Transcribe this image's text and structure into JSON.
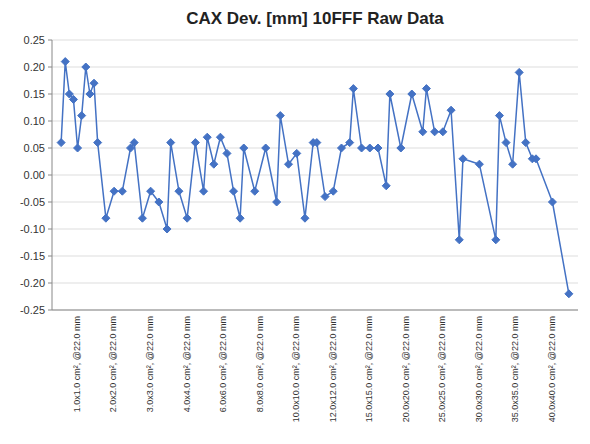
{
  "chart_data": {
    "type": "line",
    "title": "CAX Dev. [mm] 10FFF Raw Data",
    "color": "#4472C4",
    "marker": "diamond",
    "line_style": "solid",
    "grid": true,
    "ylim": [
      -0.25,
      0.25
    ],
    "yticks": [
      -0.25,
      {
        "value": -0.2,
        "label": "-0.20"
      },
      -0.15,
      {
        "value": -0.1,
        "label": "-0.10"
      },
      -0.05,
      {
        "value": 0,
        "label": "0.00"
      },
      0.05,
      {
        "value": 0.1,
        "label": "0.10"
      },
      0.15,
      {
        "value": 0.2,
        "label": "0.20"
      },
      0.25
    ],
    "categories": [
      "1.0x1.0 cm², @22.0 mm",
      "2.0x2.0 cm², @22.0 mm",
      "3.0x3.0 cm², @22.0 mm",
      "4.0x4.0 cm², @22.0 mm",
      "6.0x6.0 cm², @22.0 mm",
      "8.0x8.0 cm², @22.0 mm",
      "10.0x10.0 cm², @22.0 mm",
      "12.0x12.0 cm², @22.0 mm",
      "15.0x15.0 cm², @22.0 mm",
      "20.0x20.0 cm², @22.0 mm",
      "25.0x25.0 cm², @22.0 mm",
      "30.0x30.0 cm², @22.0 mm",
      "35.0x35.0 cm², @22.0 mm",
      "40.0x40.0 cm², @22.0 mm"
    ],
    "values": [
      [
        0.06,
        0.21,
        0.15,
        0.14,
        0.05,
        0.11,
        0.2,
        0.15,
        0.17
      ],
      [
        0.06,
        -0.08,
        -0.03,
        -0.03,
        0.05
      ],
      [
        0.06,
        -0.08,
        -0.03,
        -0.05,
        -0.1
      ],
      [
        0.06,
        -0.03,
        -0.08,
        0.06,
        -0.03
      ],
      [
        0.07,
        0.02,
        0.07,
        0.04,
        -0.03,
        -0.08
      ],
      [
        0.05,
        -0.03,
        0.05,
        -0.05
      ],
      [
        0.11,
        0.02,
        0.04,
        -0.08,
        0.06
      ],
      [
        0.06,
        -0.04,
        -0.03,
        0.05,
        0.06
      ],
      [
        0.16,
        0.05,
        0.05,
        0.05,
        -0.02
      ],
      [
        0.15,
        0.05,
        0.15,
        0.08
      ],
      [
        0.16,
        0.08,
        0.08,
        0.12,
        -0.12
      ],
      [
        0.03,
        0.02,
        -0.12
      ],
      [
        0.11,
        0.06,
        0.02,
        0.19,
        0.06,
        0.03
      ],
      [
        0.03,
        -0.05,
        -0.22
      ]
    ]
  }
}
